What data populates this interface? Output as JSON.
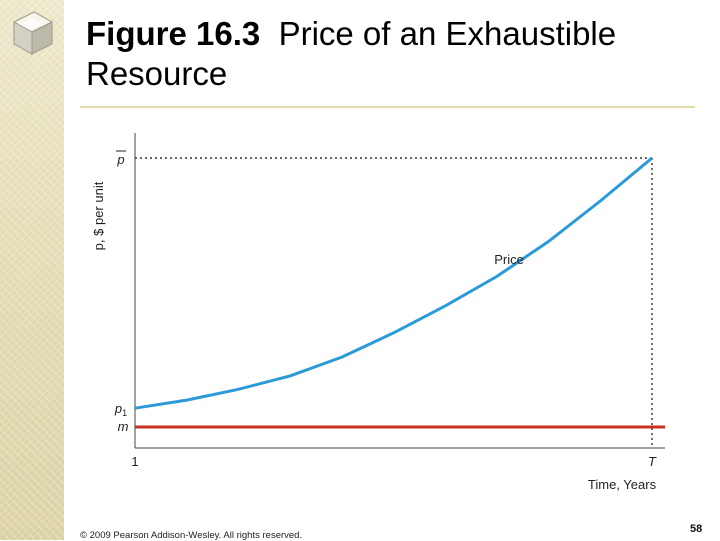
{
  "title": {
    "figure_label": "Figure 16.3",
    "text": "Price of an Exhaustible Resource"
  },
  "footer": {
    "copyright": "© 2009 Pearson Addison-Wesley. All rights reserved.",
    "page_number": "58"
  },
  "colors": {
    "price_curve": "#2b9ad9",
    "cost_line": "#c8321f",
    "sidebar": "#e6dfb8"
  },
  "chart_data": {
    "type": "line",
    "ylabel": "p, $ per unit",
    "xlabel": "Time, Years",
    "x_ticks": [
      "1",
      "T"
    ],
    "y_markers": {
      "p_bar": "p",
      "p1_main": "p",
      "p1_sub": "1",
      "m": "m"
    },
    "annotation": "Price",
    "series": [
      {
        "name": "Price",
        "x": [
          0,
          0.1,
          0.2,
          0.3,
          0.4,
          0.5,
          0.6,
          0.7,
          0.8,
          0.9,
          1.0
        ],
        "y": [
          0.07,
          0.1,
          0.14,
          0.19,
          0.26,
          0.35,
          0.45,
          0.56,
          0.69,
          0.84,
          1.0
        ]
      },
      {
        "name": "m",
        "x": [
          0,
          1.0
        ],
        "y": [
          0,
          0
        ]
      }
    ],
    "xlim": [
      0,
      1.0
    ],
    "ylim": [
      0,
      1.0
    ],
    "grid": false
  }
}
